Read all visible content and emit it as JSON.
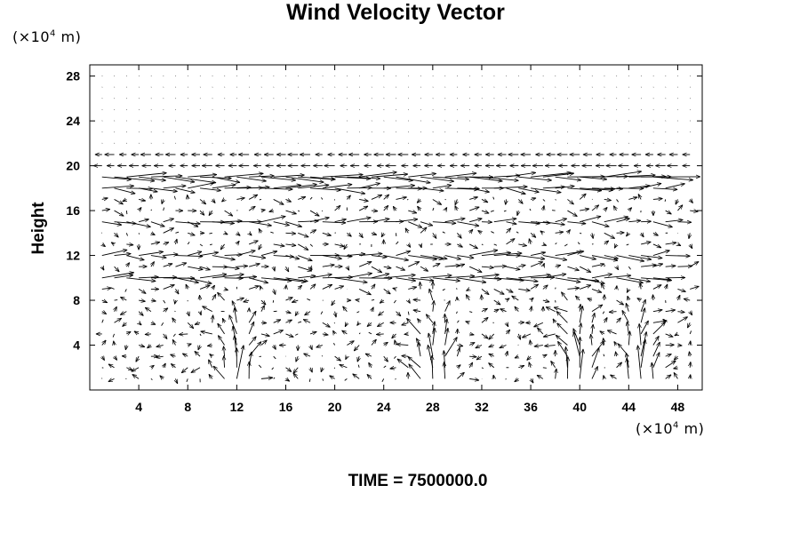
{
  "chart_data": {
    "type": "vector-field",
    "title": "Wind Velocity Vector",
    "ylabel": "Height",
    "x_unit": [
      "(×10",
      "4",
      " m)"
    ],
    "y_unit": [
      "(×10",
      "4",
      " m)"
    ],
    "xlim": [
      0,
      50
    ],
    "ylim": [
      0,
      29
    ],
    "x_ticks": [
      4,
      8,
      12,
      16,
      20,
      24,
      28,
      32,
      36,
      40,
      44,
      48
    ],
    "y_ticks": [
      4,
      8,
      12,
      16,
      20,
      24,
      28
    ],
    "grid": false,
    "footer": "TIME = 7500000.0",
    "grid_spacing": {
      "x": 1,
      "y": 1
    },
    "jets": [
      {
        "height": 19,
        "strength": 1.5
      },
      {
        "height": 18,
        "strength": 1.1
      },
      {
        "height": 15,
        "strength": 0.9
      },
      {
        "height": 12,
        "strength": 1.1
      },
      {
        "height": 10,
        "strength": 1.3
      }
    ],
    "updrafts_x": [
      12,
      28,
      40,
      45
    ]
  }
}
